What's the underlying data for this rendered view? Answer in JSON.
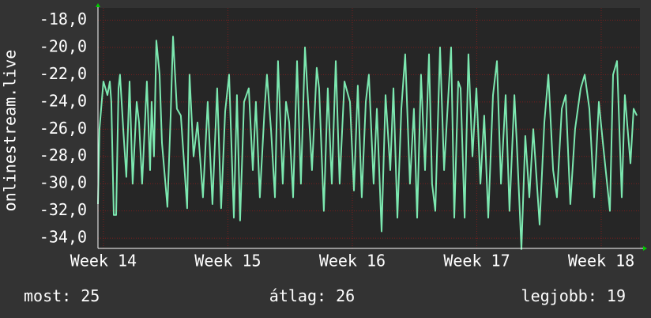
{
  "chart_data": {
    "type": "line",
    "y_label": "onlinestream.live",
    "x": [
      13.956,
      13.968,
      14.0,
      14.032,
      14.051,
      14.063,
      14.083,
      14.102,
      14.121,
      14.133,
      14.159,
      14.184,
      14.21,
      14.235,
      14.267,
      14.286,
      14.311,
      14.349,
      14.375,
      14.387,
      14.406,
      14.425,
      14.451,
      14.47,
      14.514,
      14.54,
      14.559,
      14.59,
      14.622,
      14.673,
      14.692,
      14.724,
      14.756,
      14.8,
      14.838,
      14.876,
      14.914,
      14.946,
      14.978,
      15.01,
      15.048,
      15.073,
      15.098,
      15.13,
      15.168,
      15.2,
      15.225,
      15.257,
      15.295,
      15.314,
      15.346,
      15.378,
      15.403,
      15.441,
      15.467,
      15.492,
      15.524,
      15.556,
      15.587,
      15.619,
      15.651,
      15.676,
      15.714,
      15.733,
      15.771,
      15.803,
      15.835,
      15.867,
      15.898,
      15.937,
      15.981,
      16.013,
      16.044,
      16.076,
      16.108,
      16.133,
      16.171,
      16.197,
      16.235,
      16.267,
      16.305,
      16.33,
      16.362,
      16.394,
      16.425,
      16.463,
      16.495,
      16.521,
      16.552,
      16.584,
      16.616,
      16.641,
      16.667,
      16.705,
      16.737,
      16.762,
      16.794,
      16.819,
      16.851,
      16.87,
      16.902,
      16.933,
      16.965,
      16.997,
      17.029,
      17.06,
      17.092,
      17.13,
      17.162,
      17.194,
      17.232,
      17.263,
      17.302,
      17.321,
      17.359,
      17.39,
      17.422,
      17.454,
      17.505,
      17.543,
      17.575,
      17.613,
      17.644,
      17.683,
      17.714,
      17.752,
      17.79,
      17.835,
      17.867,
      17.905,
      17.943,
      17.981,
      18.013,
      18.07,
      18.095,
      18.127,
      18.165,
      18.19,
      18.235,
      18.26,
      18.286
    ],
    "series": [
      {
        "color": "#7ce8b0",
        "values": [
          -31.5,
          -26,
          -22.5,
          -23.5,
          -22.5,
          -24,
          -32.3,
          -32.3,
          -23,
          -22,
          -26,
          -29.5,
          -22.5,
          -30,
          -24,
          -25.5,
          -30,
          -22.5,
          -29,
          -24,
          -28,
          -19.5,
          -22,
          -27,
          -31.7,
          -25,
          -19.2,
          -24.5,
          -25,
          -31.8,
          -22,
          -28,
          -25.5,
          -31,
          -24,
          -31.5,
          -23,
          -31.8,
          -24.7,
          -22,
          -32.5,
          -23.5,
          -32.7,
          -24,
          -23,
          -29,
          -24,
          -31,
          -24.5,
          -22,
          -26,
          -31,
          -21,
          -30,
          -24,
          -25.5,
          -31,
          -21,
          -30,
          -20,
          -25,
          -29,
          -21.5,
          -23,
          -32,
          -23,
          -30,
          -21,
          -30,
          -22.5,
          -24,
          -30.5,
          -22.8,
          -31,
          -24,
          -22,
          -30,
          -24.5,
          -33.5,
          -23.5,
          -29,
          -23,
          -32.5,
          -24.5,
          -20.5,
          -30,
          -24.5,
          -32.5,
          -22,
          -29,
          -20.5,
          -30,
          -32,
          -20,
          -29,
          -25,
          -20,
          -32.5,
          -22.5,
          -23,
          -32.5,
          -20.5,
          -28,
          -23,
          -30,
          -25,
          -32.5,
          -23.5,
          -21,
          -30,
          -23.5,
          -32,
          -23.5,
          -27,
          -34.8,
          -26.5,
          -31,
          -26,
          -33,
          -25.5,
          -22,
          -29,
          -31,
          -24.5,
          -23.5,
          -31.5,
          -26,
          -23,
          -22,
          -24.5,
          -31,
          -24,
          -27,
          -32,
          -22,
          -21,
          -31,
          -23.5,
          -28.5,
          -24.5,
          -25
        ]
      }
    ],
    "xlim": [
      13.956,
      18.311
    ],
    "ylim": [
      -34.75,
      -17.1
    ],
    "xticks": [
      {
        "value": 14,
        "label": "Week 14"
      },
      {
        "value": 15,
        "label": "Week 15"
      },
      {
        "value": 16,
        "label": "Week 16"
      },
      {
        "value": 17,
        "label": "Week 17"
      },
      {
        "value": 18,
        "label": "Week 18"
      }
    ],
    "yticks": [
      {
        "value": -18,
        "label": "-18,0"
      },
      {
        "value": -20,
        "label": "-20,0"
      },
      {
        "value": -22,
        "label": "-22,0"
      },
      {
        "value": -24,
        "label": "-24,0"
      },
      {
        "value": -26,
        "label": "-26,0"
      },
      {
        "value": -28,
        "label": "-28,0"
      },
      {
        "value": -30,
        "label": "-30,0"
      },
      {
        "value": -32,
        "label": "-32,0"
      },
      {
        "value": -34,
        "label": "-34,0"
      }
    ],
    "grid": true,
    "stats": [
      {
        "label": "most:",
        "value": 25
      },
      {
        "label": "átlag:",
        "value": 26
      },
      {
        "label": "legjobb:",
        "value": 19
      }
    ]
  }
}
